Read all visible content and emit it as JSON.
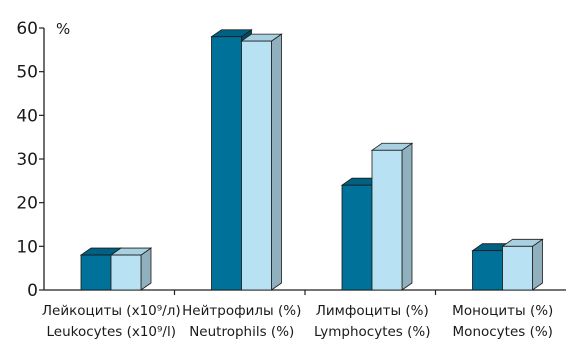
{
  "chart_data": {
    "type": "bar",
    "style": "3d-clustered",
    "categories": [
      {
        "ru": "Лейкоциты (х10⁹/л)",
        "en": "Leukocytes (х10⁹/l)"
      },
      {
        "ru": "Нейтрофилы (%)",
        "en": "Neutrophils (%)"
      },
      {
        "ru": "Лимфоциты (%)",
        "en": "Lymphocytes (%)"
      },
      {
        "ru": "Моноциты (%)",
        "en": "Monocytes (%)"
      }
    ],
    "series": [
      {
        "color": "#00729a",
        "values": [
          8,
          58,
          24,
          9
        ]
      },
      {
        "color": "#b8e2f4",
        "values": [
          8,
          57,
          32,
          10
        ]
      }
    ],
    "y_ticks": [
      "0",
      "10",
      "20",
      "30",
      "40",
      "50",
      "60"
    ],
    "ylim": [
      0,
      60
    ],
    "y_unit": "%",
    "grid": false,
    "legend": "none"
  }
}
